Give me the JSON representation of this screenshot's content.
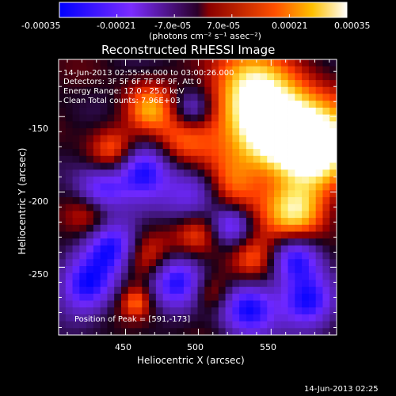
{
  "colorbar": {
    "ticks": [
      "-0.00035",
      "-0.00021",
      "-7.0e-05",
      "7.0e-05",
      "0.00021",
      "0.00035"
    ],
    "tick_values": [
      -0.00035,
      -0.00021,
      -7e-05,
      7e-05,
      0.00021,
      0.00035
    ],
    "range": [
      -0.00035,
      0.00035
    ],
    "units_label": "(photons cm⁻² s⁻¹ asec⁻²)",
    "stops": [
      "#0000ff",
      "#7b2cff",
      "#2a002a",
      "#8a0000",
      "#ff5000",
      "#ffc000",
      "#ffffff"
    ]
  },
  "plot": {
    "title": "Reconstructed RHESSI Image",
    "header_lines": [
      "14-Jun-2013 02:55:56.000 to 03:00:26.000",
      "Detectors: 3F 5F 6F 7F 8F 9F, Att 0",
      "Energy Range: 12.0 - 25.0 keV",
      "Clean     Total counts: 7.96E+03"
    ],
    "peak_label": "Position of Peak = [591,-173]",
    "footer_timestamp": "14-Jun-2013 02:25"
  },
  "chart_data": {
    "type": "heatmap",
    "title": "Reconstructed RHESSI Image",
    "xlabel": "Heliocentric X (arcsec)",
    "ylabel": "Heliocentric Y (arcsec)",
    "xlim": [
      404,
      595
    ],
    "ylim": [
      -295,
      -112
    ],
    "x_ticks": [
      450,
      500,
      550
    ],
    "y_ticks": [
      -150,
      -200,
      -250
    ],
    "x_tick_labels": [
      "450",
      "500",
      "550"
    ],
    "y_tick_labels": [
      "-150",
      "-200",
      "-250"
    ],
    "peak": [
      591,
      -173
    ],
    "value_range": [
      -0.00035,
      0.00035
    ]
  }
}
